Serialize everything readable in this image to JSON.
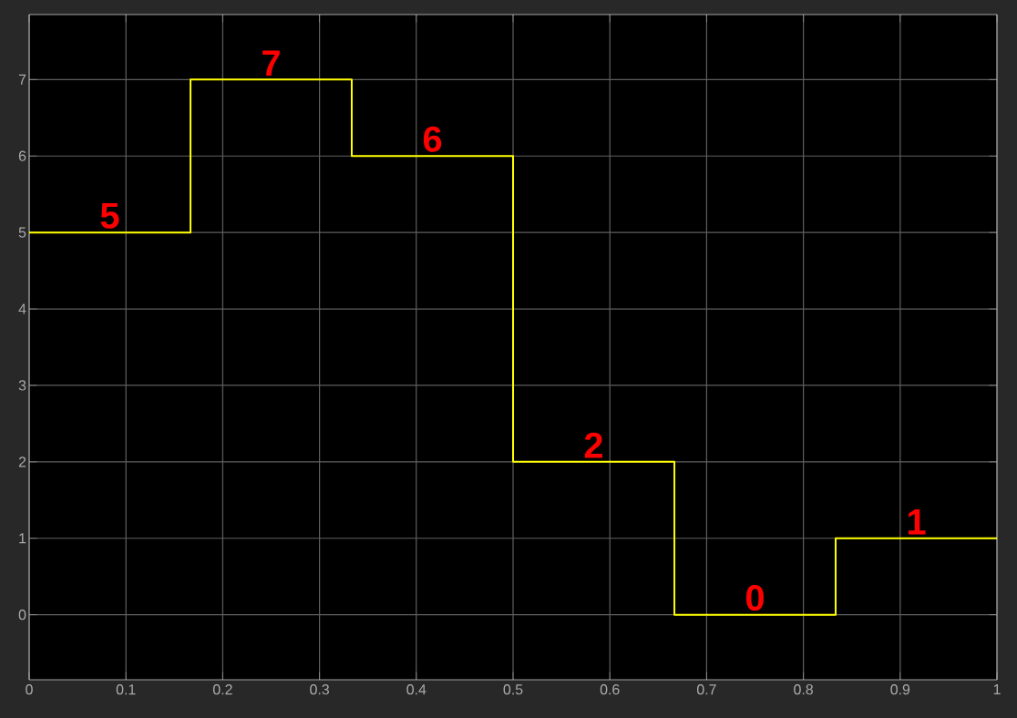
{
  "chart_data": {
    "type": "step",
    "x": [
      0,
      0.1667,
      0.3333,
      0.5,
      0.6667,
      0.8333,
      1
    ],
    "values": [
      5,
      7,
      6,
      2,
      0,
      1,
      1
    ],
    "color": "#ffff00",
    "annotations": [
      {
        "text": "5",
        "x": 0.0833,
        "y": 5
      },
      {
        "text": "7",
        "x": 0.25,
        "y": 7
      },
      {
        "text": "6",
        "x": 0.4167,
        "y": 6
      },
      {
        "text": "2",
        "x": 0.5833,
        "y": 2
      },
      {
        "text": "0",
        "x": 0.75,
        "y": 0
      },
      {
        "text": "1",
        "x": 0.9167,
        "y": 1
      }
    ],
    "xlim": [
      0,
      1
    ],
    "ylim": [
      -0.85,
      7.85
    ],
    "xticks": [
      0,
      0.1,
      0.2,
      0.3,
      0.4,
      0.5,
      0.6,
      0.7,
      0.8,
      0.9,
      1
    ],
    "yticks": [
      0,
      1,
      2,
      3,
      4,
      5,
      6,
      7
    ],
    "grid": true,
    "marker": "none",
    "line_style": "solid"
  }
}
